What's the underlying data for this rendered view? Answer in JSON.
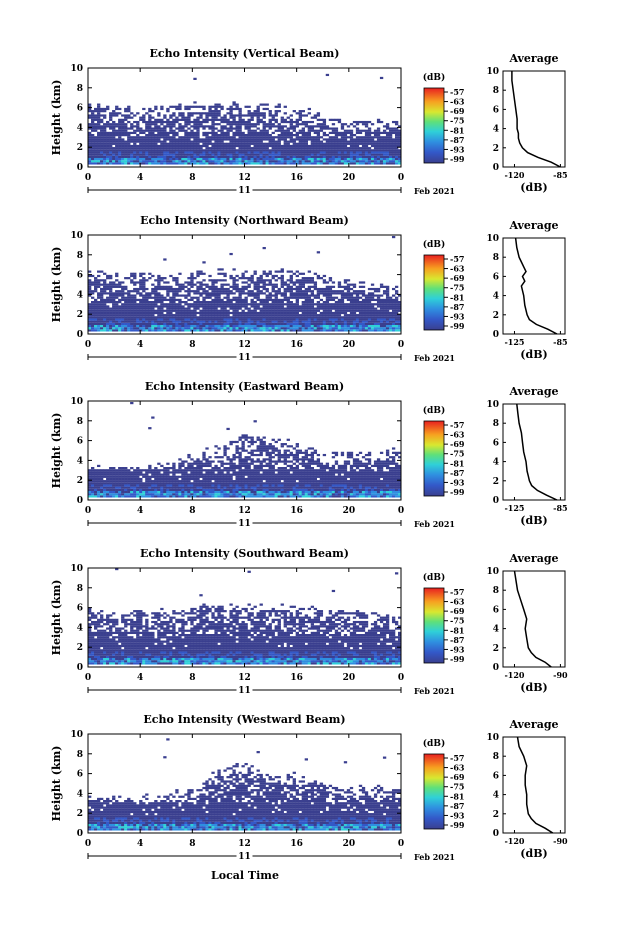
{
  "chart_data": {
    "type": "heatmap",
    "x_axis_label": "Local Time",
    "date_label": "11",
    "month_year_label": "Feb 2021",
    "x_ticks": [
      "0",
      "4",
      "8",
      "12",
      "16",
      "20",
      "0"
    ],
    "y_label": "Height (km)",
    "y_ticks": [
      "0",
      "2",
      "4",
      "6",
      "8",
      "10"
    ],
    "colorbar_unit": "(dB)",
    "colorbar_ticks": [
      "-57",
      "-63",
      "-69",
      "-75",
      "-81",
      "-87",
      "-93",
      "-99"
    ],
    "profile_title": "Average",
    "profile_xlabel": "(dB)",
    "panels": [
      {
        "title": "Echo Intensity (Vertical Beam)",
        "profile_xticks": [
          "-120",
          "-85"
        ],
        "profile": [
          [
            0,
            -85
          ],
          [
            0.5,
            -92
          ],
          [
            1.0,
            -102
          ],
          [
            1.5,
            -110
          ],
          [
            2.0,
            -114
          ],
          [
            2.5,
            -116
          ],
          [
            3.0,
            -117
          ],
          [
            3.5,
            -117
          ],
          [
            4.0,
            -118
          ],
          [
            5.0,
            -118
          ],
          [
            6.0,
            -119
          ],
          [
            7.0,
            -120
          ],
          [
            8.0,
            -121
          ],
          [
            9.0,
            -122
          ],
          [
            10.0,
            -122
          ]
        ]
      },
      {
        "title": "Echo Intensity (Northward Beam)",
        "profile_xticks": [
          "-125",
          "-85"
        ],
        "profile": [
          [
            0,
            -88
          ],
          [
            0.5,
            -96
          ],
          [
            1.0,
            -106
          ],
          [
            1.5,
            -112
          ],
          [
            2.0,
            -114
          ],
          [
            3.0,
            -116
          ],
          [
            4.0,
            -117
          ],
          [
            5.0,
            -119
          ],
          [
            5.5,
            -116
          ],
          [
            6.0,
            -118
          ],
          [
            6.5,
            -115
          ],
          [
            7.0,
            -117
          ],
          [
            7.5,
            -119
          ],
          [
            8.0,
            -121
          ],
          [
            9.0,
            -123
          ],
          [
            10.0,
            -124
          ]
        ]
      },
      {
        "title": "Echo Intensity (Eastward Beam)",
        "profile_xticks": [
          "-125",
          "-85"
        ],
        "profile": [
          [
            0,
            -88
          ],
          [
            0.5,
            -97
          ],
          [
            1.0,
            -105
          ],
          [
            1.5,
            -110
          ],
          [
            2.0,
            -112
          ],
          [
            2.5,
            -113
          ],
          [
            3.0,
            -114
          ],
          [
            4.0,
            -115
          ],
          [
            5.0,
            -117
          ],
          [
            6.0,
            -118
          ],
          [
            7.0,
            -119
          ],
          [
            8.0,
            -121
          ],
          [
            9.0,
            -122
          ],
          [
            10.0,
            -123
          ]
        ]
      },
      {
        "title": "Echo Intensity (Southward Beam)",
        "profile_xticks": [
          "-120",
          "-90"
        ],
        "profile": [
          [
            0,
            -96
          ],
          [
            0.5,
            -100
          ],
          [
            1.0,
            -106
          ],
          [
            1.5,
            -109
          ],
          [
            2.0,
            -111
          ],
          [
            3.0,
            -112
          ],
          [
            4.0,
            -113
          ],
          [
            5.0,
            -112
          ],
          [
            6.0,
            -114
          ],
          [
            7.0,
            -116
          ],
          [
            8.0,
            -118
          ],
          [
            9.0,
            -119
          ],
          [
            10.0,
            -120
          ]
        ]
      },
      {
        "title": "Echo Intensity (Westward Beam)",
        "profile_xticks": [
          "-120",
          "-90"
        ],
        "profile": [
          [
            0,
            -95
          ],
          [
            0.5,
            -100
          ],
          [
            1.0,
            -106
          ],
          [
            1.5,
            -109
          ],
          [
            2.0,
            -111
          ],
          [
            3.0,
            -112
          ],
          [
            4.0,
            -112
          ],
          [
            5.0,
            -113
          ],
          [
            6.0,
            -113
          ],
          [
            7.0,
            -112
          ],
          [
            8.0,
            -114
          ],
          [
            9.0,
            -117
          ],
          [
            10.0,
            -118
          ]
        ]
      }
    ]
  }
}
